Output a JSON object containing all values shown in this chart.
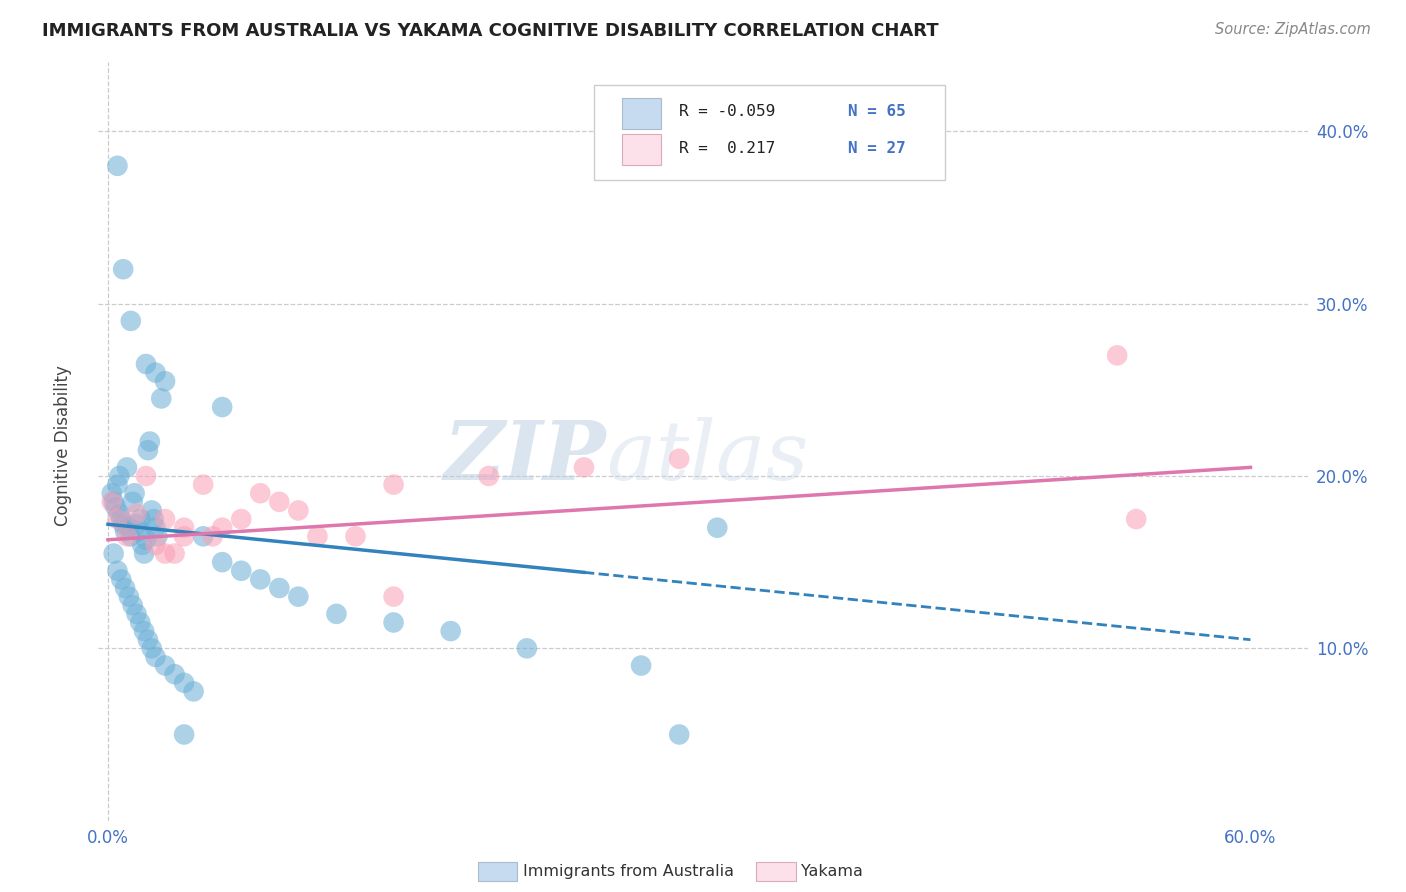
{
  "title": "IMMIGRANTS FROM AUSTRALIA VS YAKAMA COGNITIVE DISABILITY CORRELATION CHART",
  "source": "Source: ZipAtlas.com",
  "ylabel": "Cognitive Disability",
  "xlim": [
    -0.005,
    0.63
  ],
  "ylim": [
    0.0,
    0.44
  ],
  "xticks": [
    0.0,
    0.1,
    0.2,
    0.3,
    0.4,
    0.5,
    0.6
  ],
  "yticks": [
    0.1,
    0.2,
    0.3,
    0.4
  ],
  "xticklabels": [
    "0.0%",
    "",
    "",
    "",
    "",
    "",
    "60.0%"
  ],
  "yticklabels_right": [
    "10.0%",
    "20.0%",
    "30.0%",
    "40.0%"
  ],
  "blue_color": "#6baed6",
  "pink_color": "#fa9fb5",
  "blue_fill": "#c6dbef",
  "pink_fill": "#fce0ea",
  "blue_line_color": "#3182bd",
  "pink_line_color": "#de77ae",
  "grid_color": "#cccccc",
  "watermark_color": "#d0dce8",
  "note_color": "#4472c4",
  "blue_line_start_x": 0.0,
  "blue_line_start_y": 0.172,
  "blue_line_solid_end_x": 0.25,
  "blue_line_end_x": 0.6,
  "blue_line_end_y": 0.105,
  "pink_line_start_x": 0.0,
  "pink_line_start_y": 0.163,
  "pink_line_end_x": 0.6,
  "pink_line_end_y": 0.205,
  "blue_scatter_x": [
    0.002,
    0.003,
    0.004,
    0.005,
    0.006,
    0.006,
    0.007,
    0.008,
    0.009,
    0.01,
    0.011,
    0.012,
    0.013,
    0.014,
    0.015,
    0.016,
    0.017,
    0.018,
    0.019,
    0.02,
    0.021,
    0.022,
    0.023,
    0.024,
    0.025,
    0.026,
    0.028,
    0.003,
    0.005,
    0.007,
    0.009,
    0.011,
    0.013,
    0.015,
    0.017,
    0.019,
    0.021,
    0.023,
    0.025,
    0.03,
    0.035,
    0.04,
    0.045,
    0.05,
    0.06,
    0.07,
    0.08,
    0.09,
    0.1,
    0.12,
    0.15,
    0.18,
    0.22,
    0.28,
    0.32,
    0.06,
    0.005,
    0.008,
    0.012,
    0.02,
    0.025,
    0.03,
    0.04,
    0.3
  ],
  "blue_scatter_y": [
    0.19,
    0.185,
    0.182,
    0.195,
    0.2,
    0.178,
    0.175,
    0.172,
    0.168,
    0.205,
    0.17,
    0.165,
    0.185,
    0.19,
    0.172,
    0.168,
    0.175,
    0.16,
    0.155,
    0.163,
    0.215,
    0.22,
    0.18,
    0.175,
    0.17,
    0.165,
    0.245,
    0.155,
    0.145,
    0.14,
    0.135,
    0.13,
    0.125,
    0.12,
    0.115,
    0.11,
    0.105,
    0.1,
    0.095,
    0.09,
    0.085,
    0.08,
    0.075,
    0.165,
    0.15,
    0.145,
    0.14,
    0.135,
    0.13,
    0.12,
    0.115,
    0.11,
    0.1,
    0.09,
    0.17,
    0.24,
    0.38,
    0.32,
    0.29,
    0.265,
    0.26,
    0.255,
    0.05,
    0.05
  ],
  "pink_scatter_x": [
    0.002,
    0.005,
    0.01,
    0.015,
    0.02,
    0.025,
    0.03,
    0.035,
    0.04,
    0.05,
    0.06,
    0.07,
    0.08,
    0.09,
    0.1,
    0.11,
    0.13,
    0.15,
    0.2,
    0.25,
    0.3,
    0.03,
    0.04,
    0.055,
    0.53,
    0.54,
    0.15
  ],
  "pink_scatter_y": [
    0.185,
    0.175,
    0.165,
    0.178,
    0.2,
    0.16,
    0.155,
    0.155,
    0.165,
    0.195,
    0.17,
    0.175,
    0.19,
    0.185,
    0.18,
    0.165,
    0.165,
    0.195,
    0.2,
    0.205,
    0.21,
    0.175,
    0.17,
    0.165,
    0.27,
    0.175,
    0.13
  ]
}
